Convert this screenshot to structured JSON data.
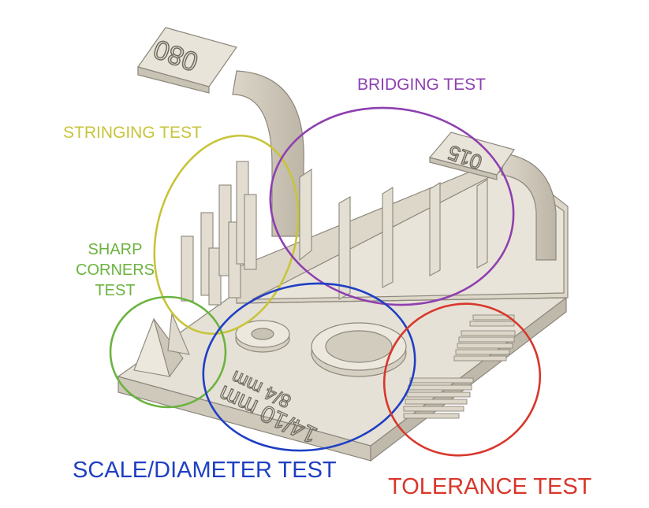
{
  "labels": {
    "stringing": "STRINGING TEST",
    "bridging": "BRIDGING TEST",
    "sharp_corners": [
      "SHARP",
      "CORNERS",
      "TEST"
    ],
    "scale_diameter": "SCALE/DIAMETER TEST",
    "tolerance": "TOLERANCE TEST"
  },
  "model_text": {
    "arch_left": "080",
    "arch_right": "015",
    "ring_large": "14/10 mm",
    "ring_small": "8/4 mm"
  },
  "colors": {
    "stringing": "#c8c43a",
    "bridging": "#8e3fb0",
    "sharp_corners": "#6cb33f",
    "scale_diameter": "#1f3fc4",
    "tolerance": "#d8372c",
    "model_face": "#e6e1d6",
    "model_shade": "#c9c3b5",
    "model_edge": "#8d877c"
  }
}
